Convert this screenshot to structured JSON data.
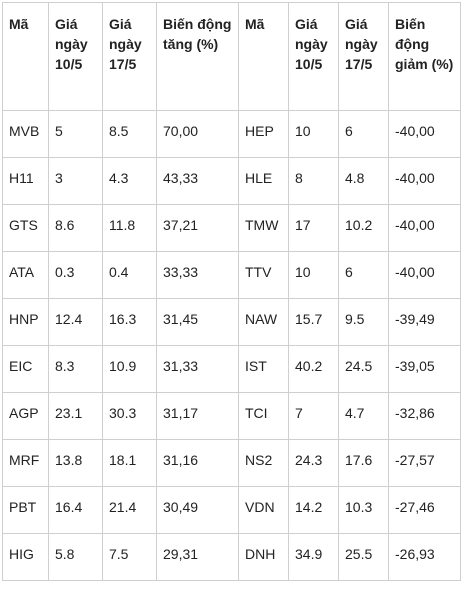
{
  "table": {
    "headers": [
      "Mã",
      "Giá ngày 10/5",
      "Giá ngày 17/5",
      "Biến động tăng (%)",
      "Mã",
      "Giá ngày 10/5",
      "Giá ngày 17/5",
      "Biến động giảm (%)"
    ],
    "rows": [
      [
        "MVB",
        "5",
        "8.5",
        "70,00",
        "HEP",
        "10",
        "6",
        "-40,00"
      ],
      [
        "H11",
        "3",
        "4.3",
        "43,33",
        "HLE",
        "8",
        "4.8",
        "-40,00"
      ],
      [
        "GTS",
        "8.6",
        "11.8",
        "37,21",
        "TMW",
        "17",
        "10.2",
        "-40,00"
      ],
      [
        "ATA",
        "0.3",
        "0.4",
        "33,33",
        "TTV",
        "10",
        "6",
        "-40,00"
      ],
      [
        "HNP",
        "12.4",
        "16.3",
        "31,45",
        "NAW",
        "15.7",
        "9.5",
        "-39,49"
      ],
      [
        "EIC",
        "8.3",
        "10.9",
        "31,33",
        "IST",
        "40.2",
        "24.5",
        "-39,05"
      ],
      [
        "AGP",
        "23.1",
        "30.3",
        "31,17",
        "TCI",
        "7",
        "4.7",
        "-32,86"
      ],
      [
        "MRF",
        "13.8",
        "18.1",
        "31,16",
        "NS2",
        "24.3",
        "17.6",
        "-27,57"
      ],
      [
        "PBT",
        "16.4",
        "21.4",
        "30,49",
        "VDN",
        "14.2",
        "10.3",
        "-27,46"
      ],
      [
        "HIG",
        "5.8",
        "7.5",
        "29,31",
        "DNH",
        "34.9",
        "25.5",
        "-26,93"
      ]
    ]
  }
}
